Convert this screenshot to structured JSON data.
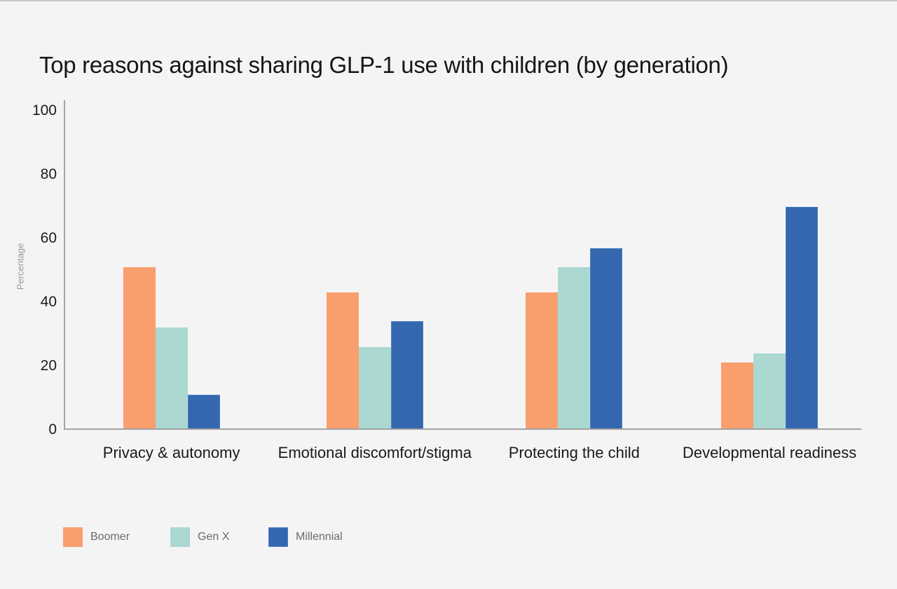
{
  "page": {
    "background_color": "#F5F4F5",
    "top_border_color": "#C8C6C8",
    "axis_color": "#A3A2A5"
  },
  "chart_data": {
    "type": "bar",
    "title": "Top reasons against sharing GLP-1 use with children (by generation)",
    "xlabel": "",
    "ylabel": "Percentage",
    "ylim": [
      0,
      100
    ],
    "yticks": [
      0,
      20,
      40,
      60,
      80,
      100
    ],
    "grid": false,
    "legend_position": "bottom-left",
    "categories": [
      "Privacy & autonomy",
      "Emotional discomfort/stigma",
      "Protecting the child",
      "Developmental readiness"
    ],
    "series": [
      {
        "name": "Boomer",
        "color": "#F99F6D",
        "values": [
          51,
          43,
          43,
          21
        ]
      },
      {
        "name": "Gen X",
        "color": "#ABD8D1",
        "values": [
          32,
          26,
          51,
          24
        ]
      },
      {
        "name": "Millennial",
        "color": "#3467AE",
        "border_color": "#4A80C8",
        "values": [
          11,
          34,
          57,
          70
        ]
      }
    ],
    "group_centers_pct": [
      13.5,
      39,
      64,
      88.5
    ]
  }
}
